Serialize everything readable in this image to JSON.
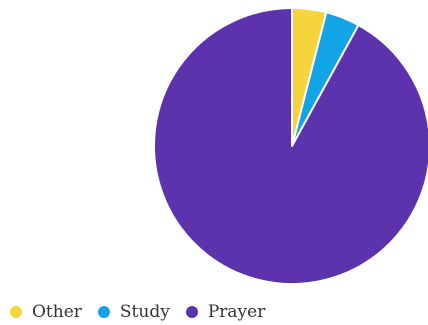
{
  "chart_data": {
    "type": "pie",
    "title": "",
    "slices": [
      {
        "label": "Other",
        "value": 4,
        "color": "#f5d53b"
      },
      {
        "label": "Study",
        "value": 4,
        "color": "#12a4e4"
      },
      {
        "label": "Prayer",
        "value": 92,
        "color": "#5c33ad"
      }
    ],
    "legend_position": "bottom-left",
    "start_angle_deg": 0,
    "direction": "clockwise"
  },
  "legend": {
    "items": [
      {
        "label": "Other",
        "color": "#f5d53b"
      },
      {
        "label": "Study",
        "color": "#12a4e4"
      },
      {
        "label": "Prayer",
        "color": "#5c33ad"
      }
    ]
  }
}
